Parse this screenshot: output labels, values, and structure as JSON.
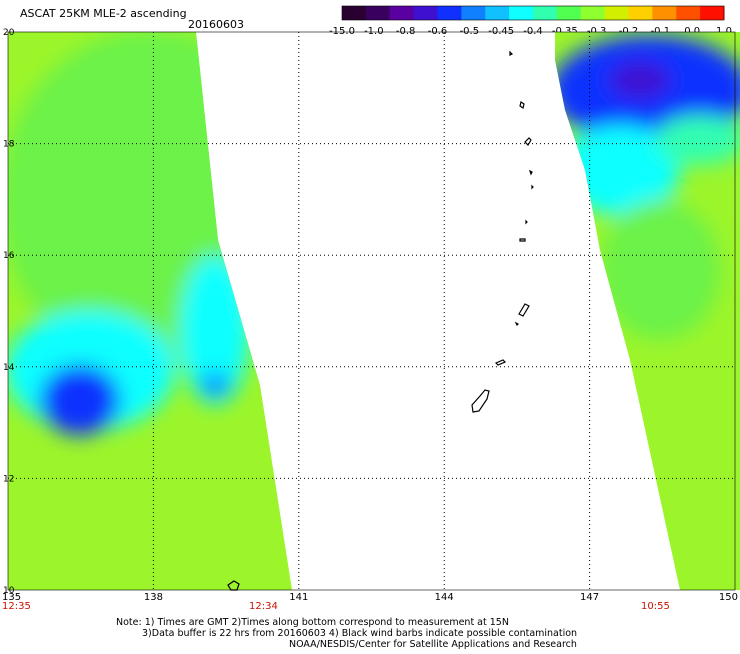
{
  "header": {
    "title": "ASCAT 25KM MLE-2 ascending",
    "date": "20160603"
  },
  "colorbar": {
    "ticks": [
      "-15.0",
      "-1.0",
      "-0.8",
      "-0.6",
      "-0.5",
      "-0.45",
      "-0.4",
      "-0.35",
      "-0.3",
      "-0.2",
      "-0.1",
      "0.0",
      "1.0"
    ],
    "colors": [
      "#2a0030",
      "#3a0060",
      "#5a00a0",
      "#4010d0",
      "#1030ff",
      "#1080ff",
      "#10c0ff",
      "#10ffff",
      "#30ffb0",
      "#50ff50",
      "#90ff30",
      "#d0f000",
      "#ffd000",
      "#ff9000",
      "#ff5000",
      "#ff1000"
    ]
  },
  "map": {
    "x_ticks": [
      "135",
      "138",
      "141",
      "144",
      "147",
      "150"
    ],
    "y_ticks": [
      "20",
      "18",
      "16",
      "14",
      "12",
      "10"
    ],
    "pass_times": [
      "12:35",
      "12:34",
      "10:55"
    ]
  },
  "notes": [
    "Note: 1) Times are GMT 2)Times along bottom correspond to measurement at 15N",
    "3)Data buffer is 22 hrs from 20160603 4) Black wind barbs indicate possible contamination",
    "NOAA/NESDIS/Center for Satellite Applications and Research"
  ],
  "chart_data": {
    "type": "heatmap",
    "title": "ASCAT 25KM MLE-2 ascending",
    "date": "20160603",
    "colorbar_ticks": [
      -15.0,
      -1.0,
      -0.8,
      -0.6,
      -0.5,
      -0.45,
      -0.4,
      -0.35,
      -0.3,
      -0.2,
      -0.1,
      0.0,
      1.0
    ],
    "xlim": [
      135,
      150
    ],
    "ylim": [
      10,
      20
    ],
    "x_ticks": [
      135,
      138,
      141,
      144,
      147,
      150
    ],
    "y_ticks": [
      10,
      12,
      14,
      16,
      18,
      20
    ],
    "grid": true,
    "swaths": [
      {
        "pass_time": "12:35",
        "region": "western swath",
        "dominant_value": -0.3,
        "min_value": -0.6
      },
      {
        "pass_time": "10:55",
        "region": "eastern swath",
        "dominant_value": -0.3,
        "min_value": -0.8
      }
    ]
  }
}
